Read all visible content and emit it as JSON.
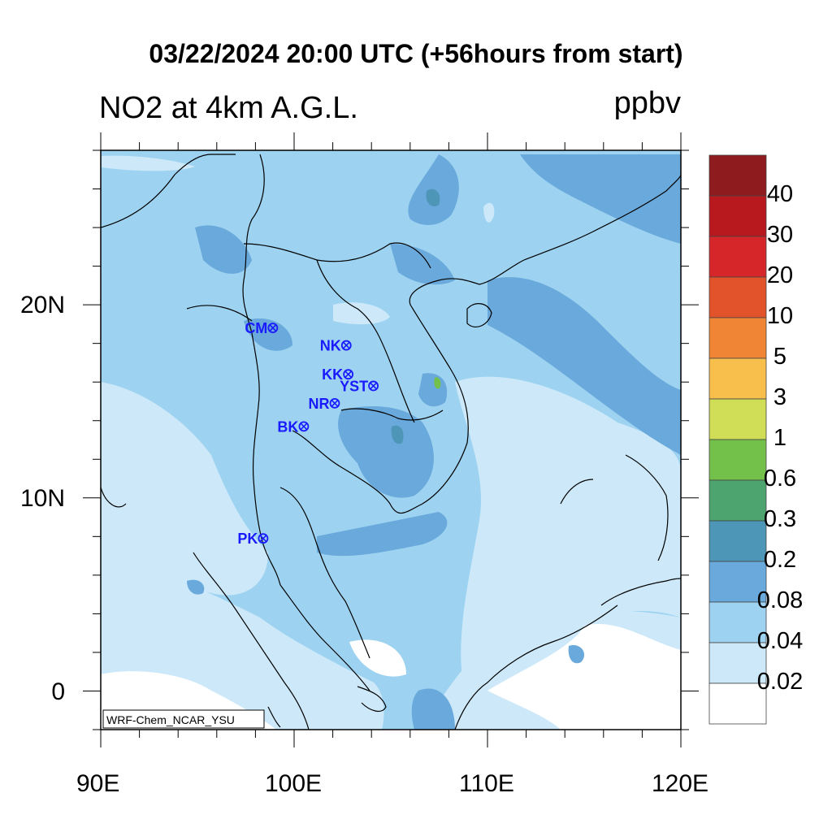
{
  "title": "03/22/2024 20:00 UTC (+56hours from start)",
  "subtitle": "NO2 at 4km A.G.L.",
  "units": "ppbv",
  "model_label": "WRF-Chem_NCAR_YSU",
  "x_ticks": [
    "90E",
    "100E",
    "110E",
    "120E"
  ],
  "y_ticks": [
    "20N",
    "10N",
    "0"
  ],
  "colorbar": {
    "labels": [
      "40",
      "30",
      "20",
      "10",
      "5",
      "3",
      "1",
      "0.6",
      "0.3",
      "0.2",
      "0.08",
      "0.04",
      "0.02"
    ],
    "colors_top_to_bottom": [
      "#8e1b1e",
      "#b8191f",
      "#d62629",
      "#e3532b",
      "#f08536",
      "#f9bf4d",
      "#d0dd57",
      "#73c14a",
      "#4ea46f",
      "#4e96b7",
      "#6aa9dc",
      "#9dd3f1",
      "#cde9f9",
      "#ffffff"
    ]
  },
  "stations": [
    {
      "name": "CM",
      "lon": 98.9,
      "lat": 18.8
    },
    {
      "name": "NK",
      "lon": 102.7,
      "lat": 17.9
    },
    {
      "name": "KK",
      "lon": 102.8,
      "lat": 16.4
    },
    {
      "name": "YST",
      "lon": 104.1,
      "lat": 15.8
    },
    {
      "name": "NR",
      "lon": 102.1,
      "lat": 14.9
    },
    {
      "name": "BK",
      "lon": 100.5,
      "lat": 13.7
    },
    {
      "name": "PK",
      "lon": 98.4,
      "lat": 7.9
    }
  ],
  "map_extent": {
    "lon": [
      90,
      120
    ],
    "lat": [
      -2,
      28
    ]
  }
}
